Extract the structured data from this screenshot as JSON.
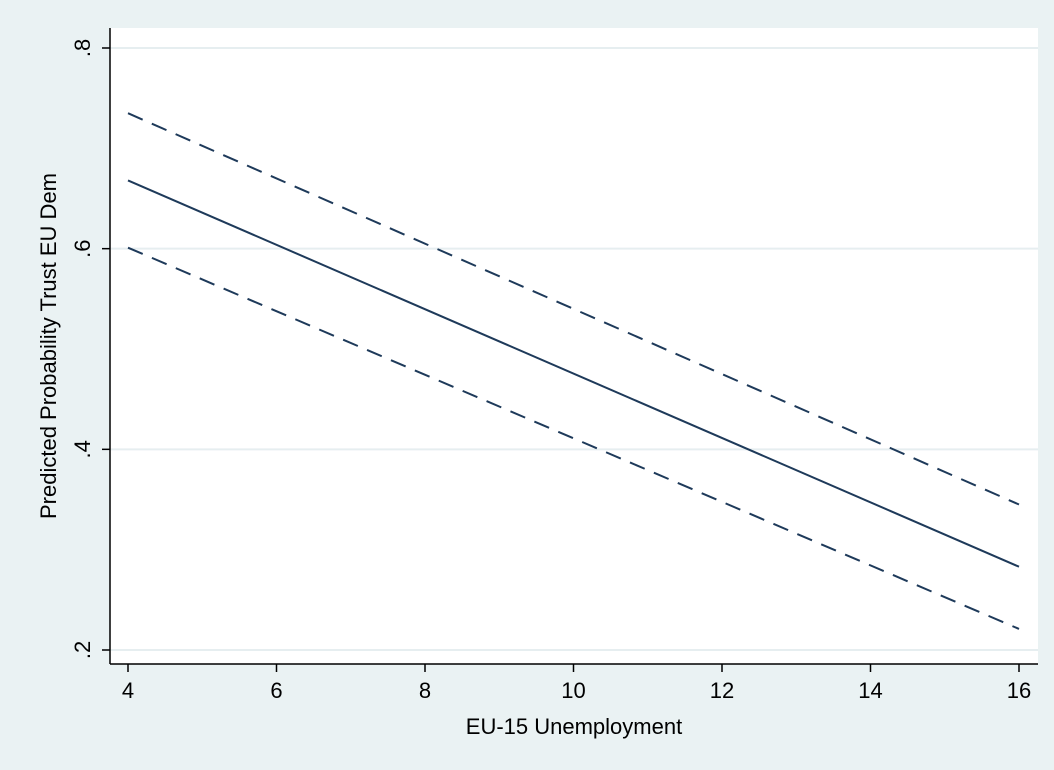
{
  "chart_data": {
    "type": "line",
    "xlabel": "EU-15 Unemployment",
    "ylabel": "Predicted Probability Trust EU Dem",
    "xlim": [
      4,
      16
    ],
    "ylim": [
      0.2,
      0.8
    ],
    "x_ticks": [
      4,
      6,
      8,
      10,
      12,
      14,
      16
    ],
    "x_tick_labels": [
      "4",
      "6",
      "8",
      "10",
      "12",
      "14",
      "16"
    ],
    "y_ticks": [
      0.2,
      0.4,
      0.6,
      0.8
    ],
    "y_tick_labels": [
      ".2",
      ".4",
      ".6",
      ".8"
    ],
    "grid": "horizontal",
    "series": [
      {
        "x": [
          4,
          16
        ],
        "values": [
          0.668,
          0.283
        ],
        "style": "solid"
      },
      {
        "x": [
          4,
          16
        ],
        "values": [
          0.735,
          0.345
        ],
        "style": "dashed"
      },
      {
        "x": [
          4,
          16
        ],
        "values": [
          0.601,
          0.221
        ],
        "style": "dashed"
      }
    ]
  },
  "colors": {
    "background": "#eaf2f3",
    "plot_area": "#ffffff",
    "gridline": "#e6eef0",
    "series": "#1e3a5a"
  }
}
